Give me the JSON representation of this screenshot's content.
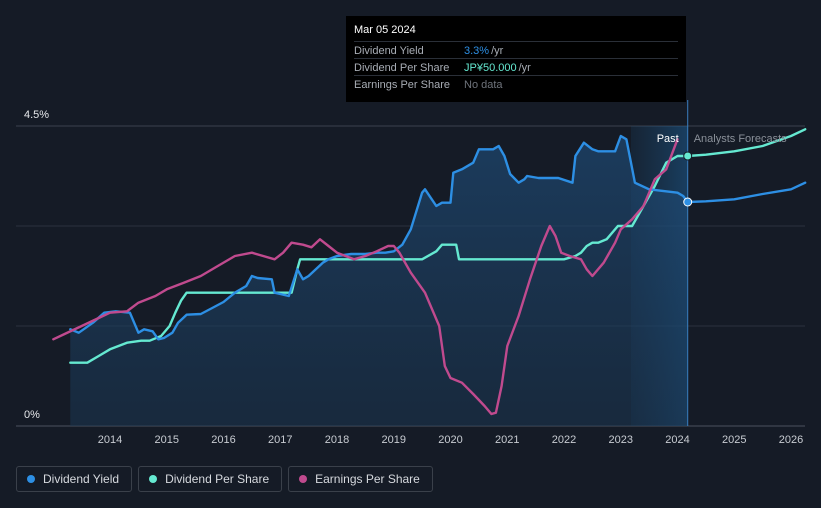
{
  "tooltip": {
    "date": "Mar 05 2024",
    "rows": [
      {
        "label": "Dividend Yield",
        "value": "3.3%",
        "unit": "/yr",
        "color": "#2d8fe4"
      },
      {
        "label": "Dividend Per Share",
        "value": "JP¥50.000",
        "unit": "/yr",
        "color": "#65e9d1"
      },
      {
        "label": "Earnings Per Share",
        "value": "No data",
        "unit": "",
        "color": "#6f747c"
      }
    ]
  },
  "legend": [
    {
      "label": "Dividend Yield",
      "color": "#2d8fe4"
    },
    {
      "label": "Dividend Per Share",
      "color": "#65e9d1"
    },
    {
      "label": "Earnings Per Share",
      "color": "#c04a8e"
    }
  ],
  "colors": {
    "background": "#151b26",
    "yield": "#2d8fe4",
    "dps": "#65e9d1",
    "eps": "#c04a8e",
    "grid": "#2a313d"
  },
  "chart_data": {
    "type": "line",
    "title": "",
    "ylim": [
      0,
      4.5
    ],
    "xlim": [
      2013.0,
      2026.25
    ],
    "ytick_labels": [
      "4.5%",
      "0%"
    ],
    "xticks": [
      2014,
      2015,
      2016,
      2017,
      2018,
      2019,
      2020,
      2021,
      2022,
      2023,
      2024,
      2025,
      2026
    ],
    "past_label": "Past",
    "forecast_label": "Analysts Forecasts",
    "forecast_start": 2024.18,
    "series": [
      {
        "name": "Dividend Yield",
        "unit": "%",
        "filled": true,
        "x": [
          2013.3,
          2013.45,
          2013.7,
          2013.9,
          2014.1,
          2014.35,
          2014.5,
          2014.6,
          2014.75,
          2014.85,
          2014.95,
          2015.1,
          2015.2,
          2015.35,
          2015.6,
          2015.8,
          2016.0,
          2016.2,
          2016.4,
          2016.5,
          2016.6,
          2016.85,
          2016.9,
          2017.0,
          2017.15,
          2017.3,
          2017.4,
          2017.5,
          2017.75,
          2017.85,
          2018.0,
          2018.25,
          2018.5,
          2018.7,
          2018.85,
          2019.0,
          2019.15,
          2019.3,
          2019.5,
          2019.55,
          2019.75,
          2019.85,
          2020.0,
          2020.05,
          2020.2,
          2020.4,
          2020.5,
          2020.6,
          2020.75,
          2020.85,
          2020.95,
          2021.05,
          2021.2,
          2021.3,
          2021.35,
          2021.55,
          2021.8,
          2021.9,
          2022.15,
          2022.2,
          2022.35,
          2022.5,
          2022.6,
          2022.9,
          2023.0,
          2023.1,
          2023.25,
          2023.5,
          2024.0,
          2024.1,
          2024.18,
          2024.5,
          2025.0,
          2025.5,
          2026.0,
          2026.25
        ],
        "y": [
          1.45,
          1.4,
          1.55,
          1.7,
          1.72,
          1.7,
          1.4,
          1.45,
          1.42,
          1.3,
          1.32,
          1.4,
          1.55,
          1.67,
          1.68,
          1.77,
          1.86,
          2.0,
          2.1,
          2.25,
          2.22,
          2.2,
          2.0,
          1.98,
          1.95,
          2.35,
          2.2,
          2.25,
          2.45,
          2.5,
          2.55,
          2.58,
          2.58,
          2.6,
          2.6,
          2.62,
          2.72,
          2.95,
          3.5,
          3.55,
          3.3,
          3.35,
          3.35,
          3.8,
          3.85,
          3.95,
          4.15,
          4.15,
          4.15,
          4.2,
          4.05,
          3.78,
          3.65,
          3.7,
          3.75,
          3.72,
          3.72,
          3.72,
          3.65,
          4.05,
          4.25,
          4.15,
          4.12,
          4.12,
          4.35,
          4.3,
          3.65,
          3.55,
          3.5,
          3.45,
          3.36,
          3.37,
          3.4,
          3.48,
          3.55,
          3.65
        ]
      },
      {
        "name": "Dividend Per Share",
        "unit": "JP¥",
        "x": [
          2013.3,
          2013.6,
          2013.8,
          2014.0,
          2014.3,
          2014.55,
          2014.7,
          2014.9,
          2015.05,
          2015.15,
          2015.25,
          2015.35,
          2016.0,
          2016.5,
          2016.9,
          2017.1,
          2017.2,
          2017.3,
          2017.35,
          2018.0,
          2018.5,
          2019.0,
          2019.5,
          2019.75,
          2019.85,
          2020.0,
          2020.1,
          2020.15,
          2021.0,
          2022.0,
          2022.2,
          2022.3,
          2022.4,
          2022.5,
          2022.6,
          2022.75,
          2022.95,
          2023.2,
          2023.4,
          2023.6,
          2023.8,
          2024.0,
          2024.18,
          2024.5,
          2025.0,
          2025.5,
          2026.0,
          2026.25
        ],
        "y": [
          0.95,
          0.95,
          1.05,
          1.15,
          1.25,
          1.28,
          1.28,
          1.35,
          1.5,
          1.7,
          1.88,
          2.0,
          2.0,
          2.0,
          2.0,
          2.0,
          2.0,
          2.35,
          2.5,
          2.5,
          2.5,
          2.5,
          2.5,
          2.62,
          2.72,
          2.72,
          2.72,
          2.5,
          2.5,
          2.5,
          2.55,
          2.6,
          2.7,
          2.75,
          2.75,
          2.8,
          3.0,
          3.0,
          3.3,
          3.6,
          3.95,
          4.05,
          4.05,
          4.07,
          4.12,
          4.2,
          4.35,
          4.45
        ]
      },
      {
        "name": "Earnings Per Share",
        "unit": "JP¥",
        "x": [
          2013.0,
          2013.2,
          2013.5,
          2013.8,
          2014.0,
          2014.3,
          2014.5,
          2014.8,
          2015.0,
          2015.3,
          2015.6,
          2015.9,
          2016.2,
          2016.5,
          2016.7,
          2016.9,
          2017.05,
          2017.2,
          2017.4,
          2017.55,
          2017.7,
          2017.85,
          2018.0,
          2018.15,
          2018.3,
          2018.5,
          2018.7,
          2018.9,
          2019.0,
          2019.1,
          2019.3,
          2019.55,
          2019.8,
          2019.9,
          2020.0,
          2020.2,
          2020.4,
          2020.6,
          2020.72,
          2020.8,
          2020.9,
          2021.0,
          2021.2,
          2021.4,
          2021.6,
          2021.75,
          2021.85,
          2021.95,
          2022.1,
          2022.3,
          2022.4,
          2022.5,
          2022.7,
          2022.9,
          2023.0,
          2023.2,
          2023.4,
          2023.6,
          2023.8,
          2024.0
        ],
        "y": [
          1.3,
          1.38,
          1.5,
          1.62,
          1.7,
          1.72,
          1.85,
          1.95,
          2.05,
          2.15,
          2.25,
          2.4,
          2.55,
          2.6,
          2.55,
          2.5,
          2.6,
          2.75,
          2.72,
          2.68,
          2.8,
          2.7,
          2.6,
          2.55,
          2.5,
          2.55,
          2.62,
          2.7,
          2.7,
          2.6,
          2.3,
          2.0,
          1.5,
          0.9,
          0.72,
          0.65,
          0.48,
          0.3,
          0.18,
          0.2,
          0.6,
          1.2,
          1.65,
          2.2,
          2.7,
          3.0,
          2.85,
          2.6,
          2.55,
          2.5,
          2.35,
          2.25,
          2.45,
          2.75,
          2.95,
          3.1,
          3.3,
          3.7,
          3.85,
          4.3
        ]
      }
    ]
  }
}
